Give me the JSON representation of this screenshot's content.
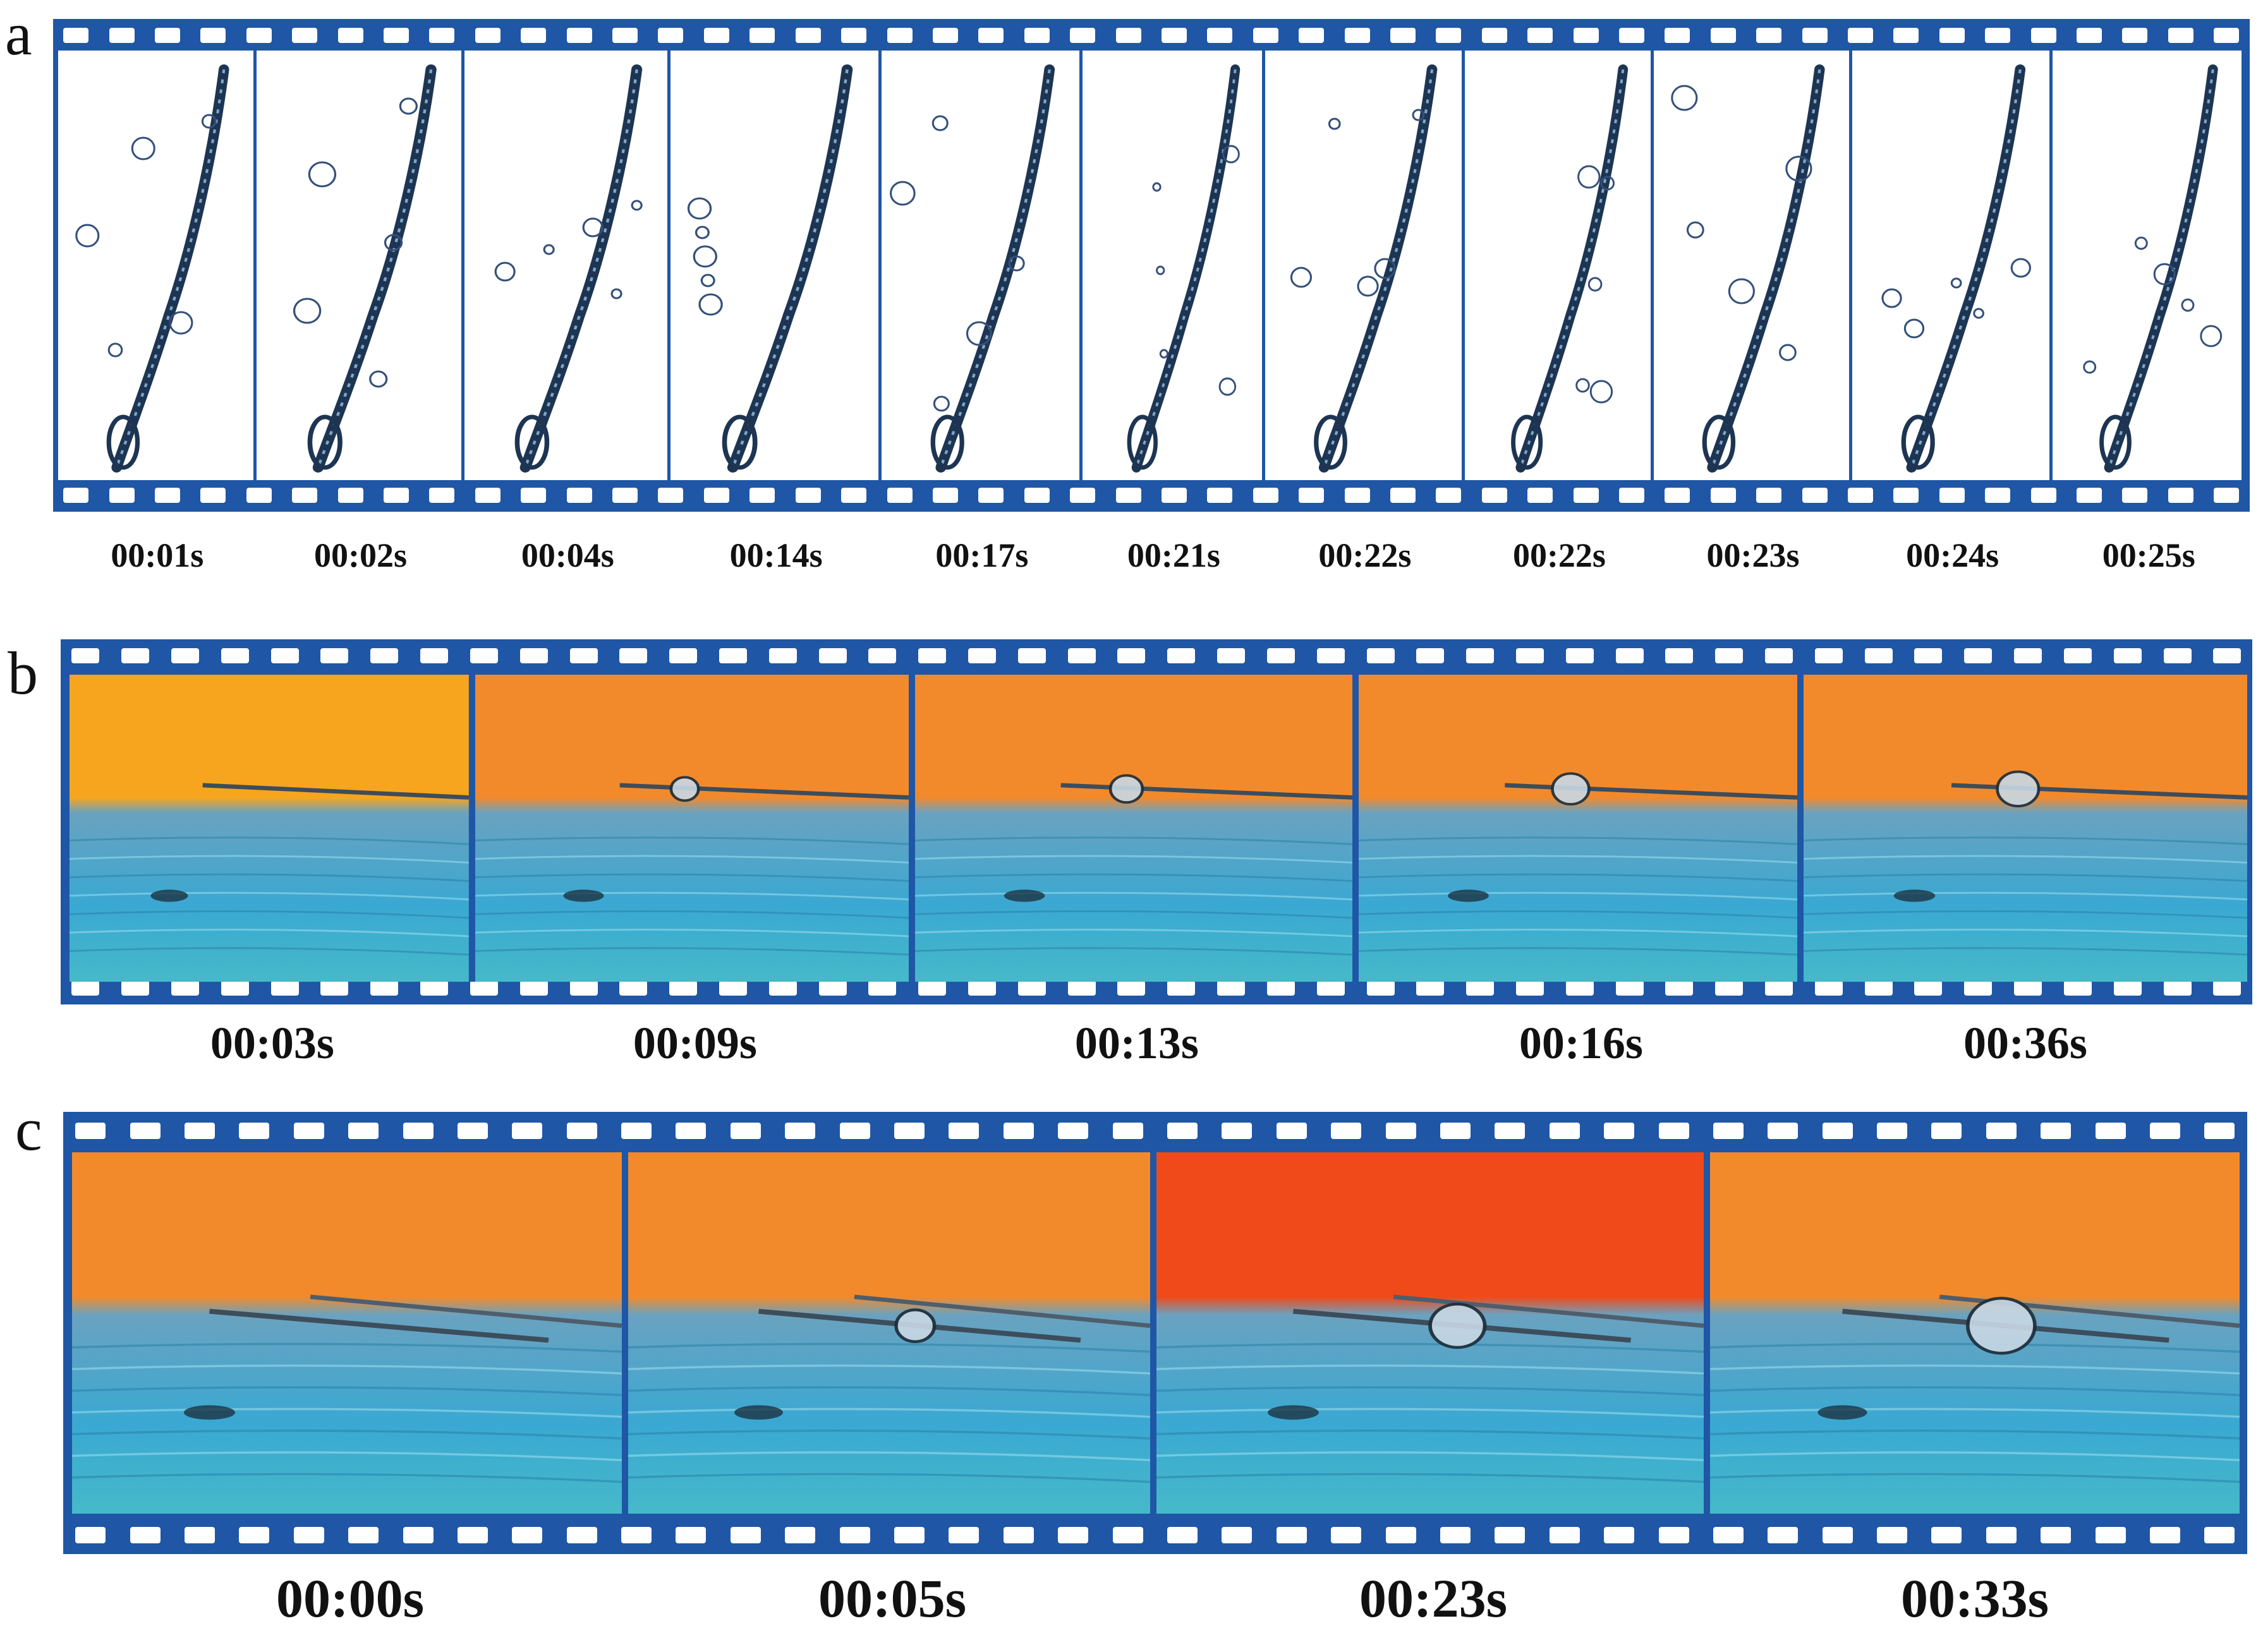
{
  "panel_a": {
    "letter": "a",
    "times": [
      "00:01s",
      "00:02s",
      "00:04s",
      "00:14s",
      "00:17s",
      "00:21s",
      "00:22s",
      "00:22s",
      "00:23s",
      "00:24s",
      "00:25s"
    ]
  },
  "panel_b": {
    "letter": "b",
    "times": [
      "00:03s",
      "00:09s",
      "00:13s",
      "00:16s",
      "00:36s"
    ]
  },
  "panel_c": {
    "letter": "c",
    "times": [
      "00:00s",
      "00:05s",
      "00:23s",
      "00:33s"
    ]
  },
  "colors": {
    "film": "#1f56a6",
    "sky_orange": "#f48a2a",
    "water_blue": "#3aa8d2"
  }
}
